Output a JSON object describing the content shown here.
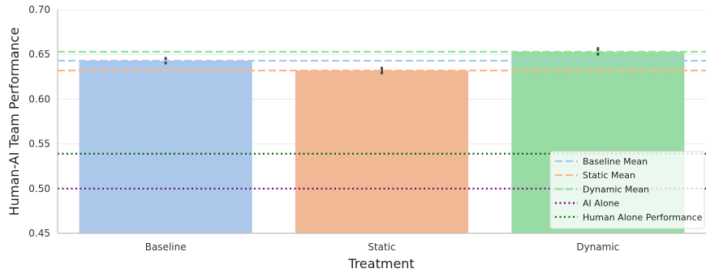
{
  "chart_data": {
    "type": "bar",
    "xlabel": "Treatment",
    "ylabel": "Human-AI Team Performance",
    "ylim": [
      0.45,
      0.7
    ],
    "yticks": [
      "0.45",
      "0.50",
      "0.55",
      "0.60",
      "0.65",
      "0.70"
    ],
    "grid": true,
    "legend_position": "lower-right",
    "categories": [
      "Baseline",
      "Static",
      "Dynamic"
    ],
    "values": [
      0.643,
      0.632,
      0.653
    ],
    "error_bars": [
      [
        0.64,
        0.646
      ],
      [
        0.629,
        0.635
      ],
      [
        0.65,
        0.657
      ]
    ],
    "bar_colors": [
      "#abc8eb",
      "#f0b894",
      "#98dba4"
    ],
    "reference_lines": [
      {
        "name": "Baseline Mean",
        "value": 0.643,
        "color": "#a1c9f4",
        "style": "dashed"
      },
      {
        "name": "Static Mean",
        "value": 0.632,
        "color": "#ffb482",
        "style": "dashed"
      },
      {
        "name": "Dynamic Mean",
        "value": 0.653,
        "color": "#8de5a1",
        "style": "dashed"
      },
      {
        "name": "AI Alone",
        "value": 0.5,
        "color": "#800080",
        "style": "dotted"
      },
      {
        "name": "Human Alone Performance",
        "value": 0.539,
        "color": "#006400",
        "style": "dotted"
      }
    ]
  }
}
